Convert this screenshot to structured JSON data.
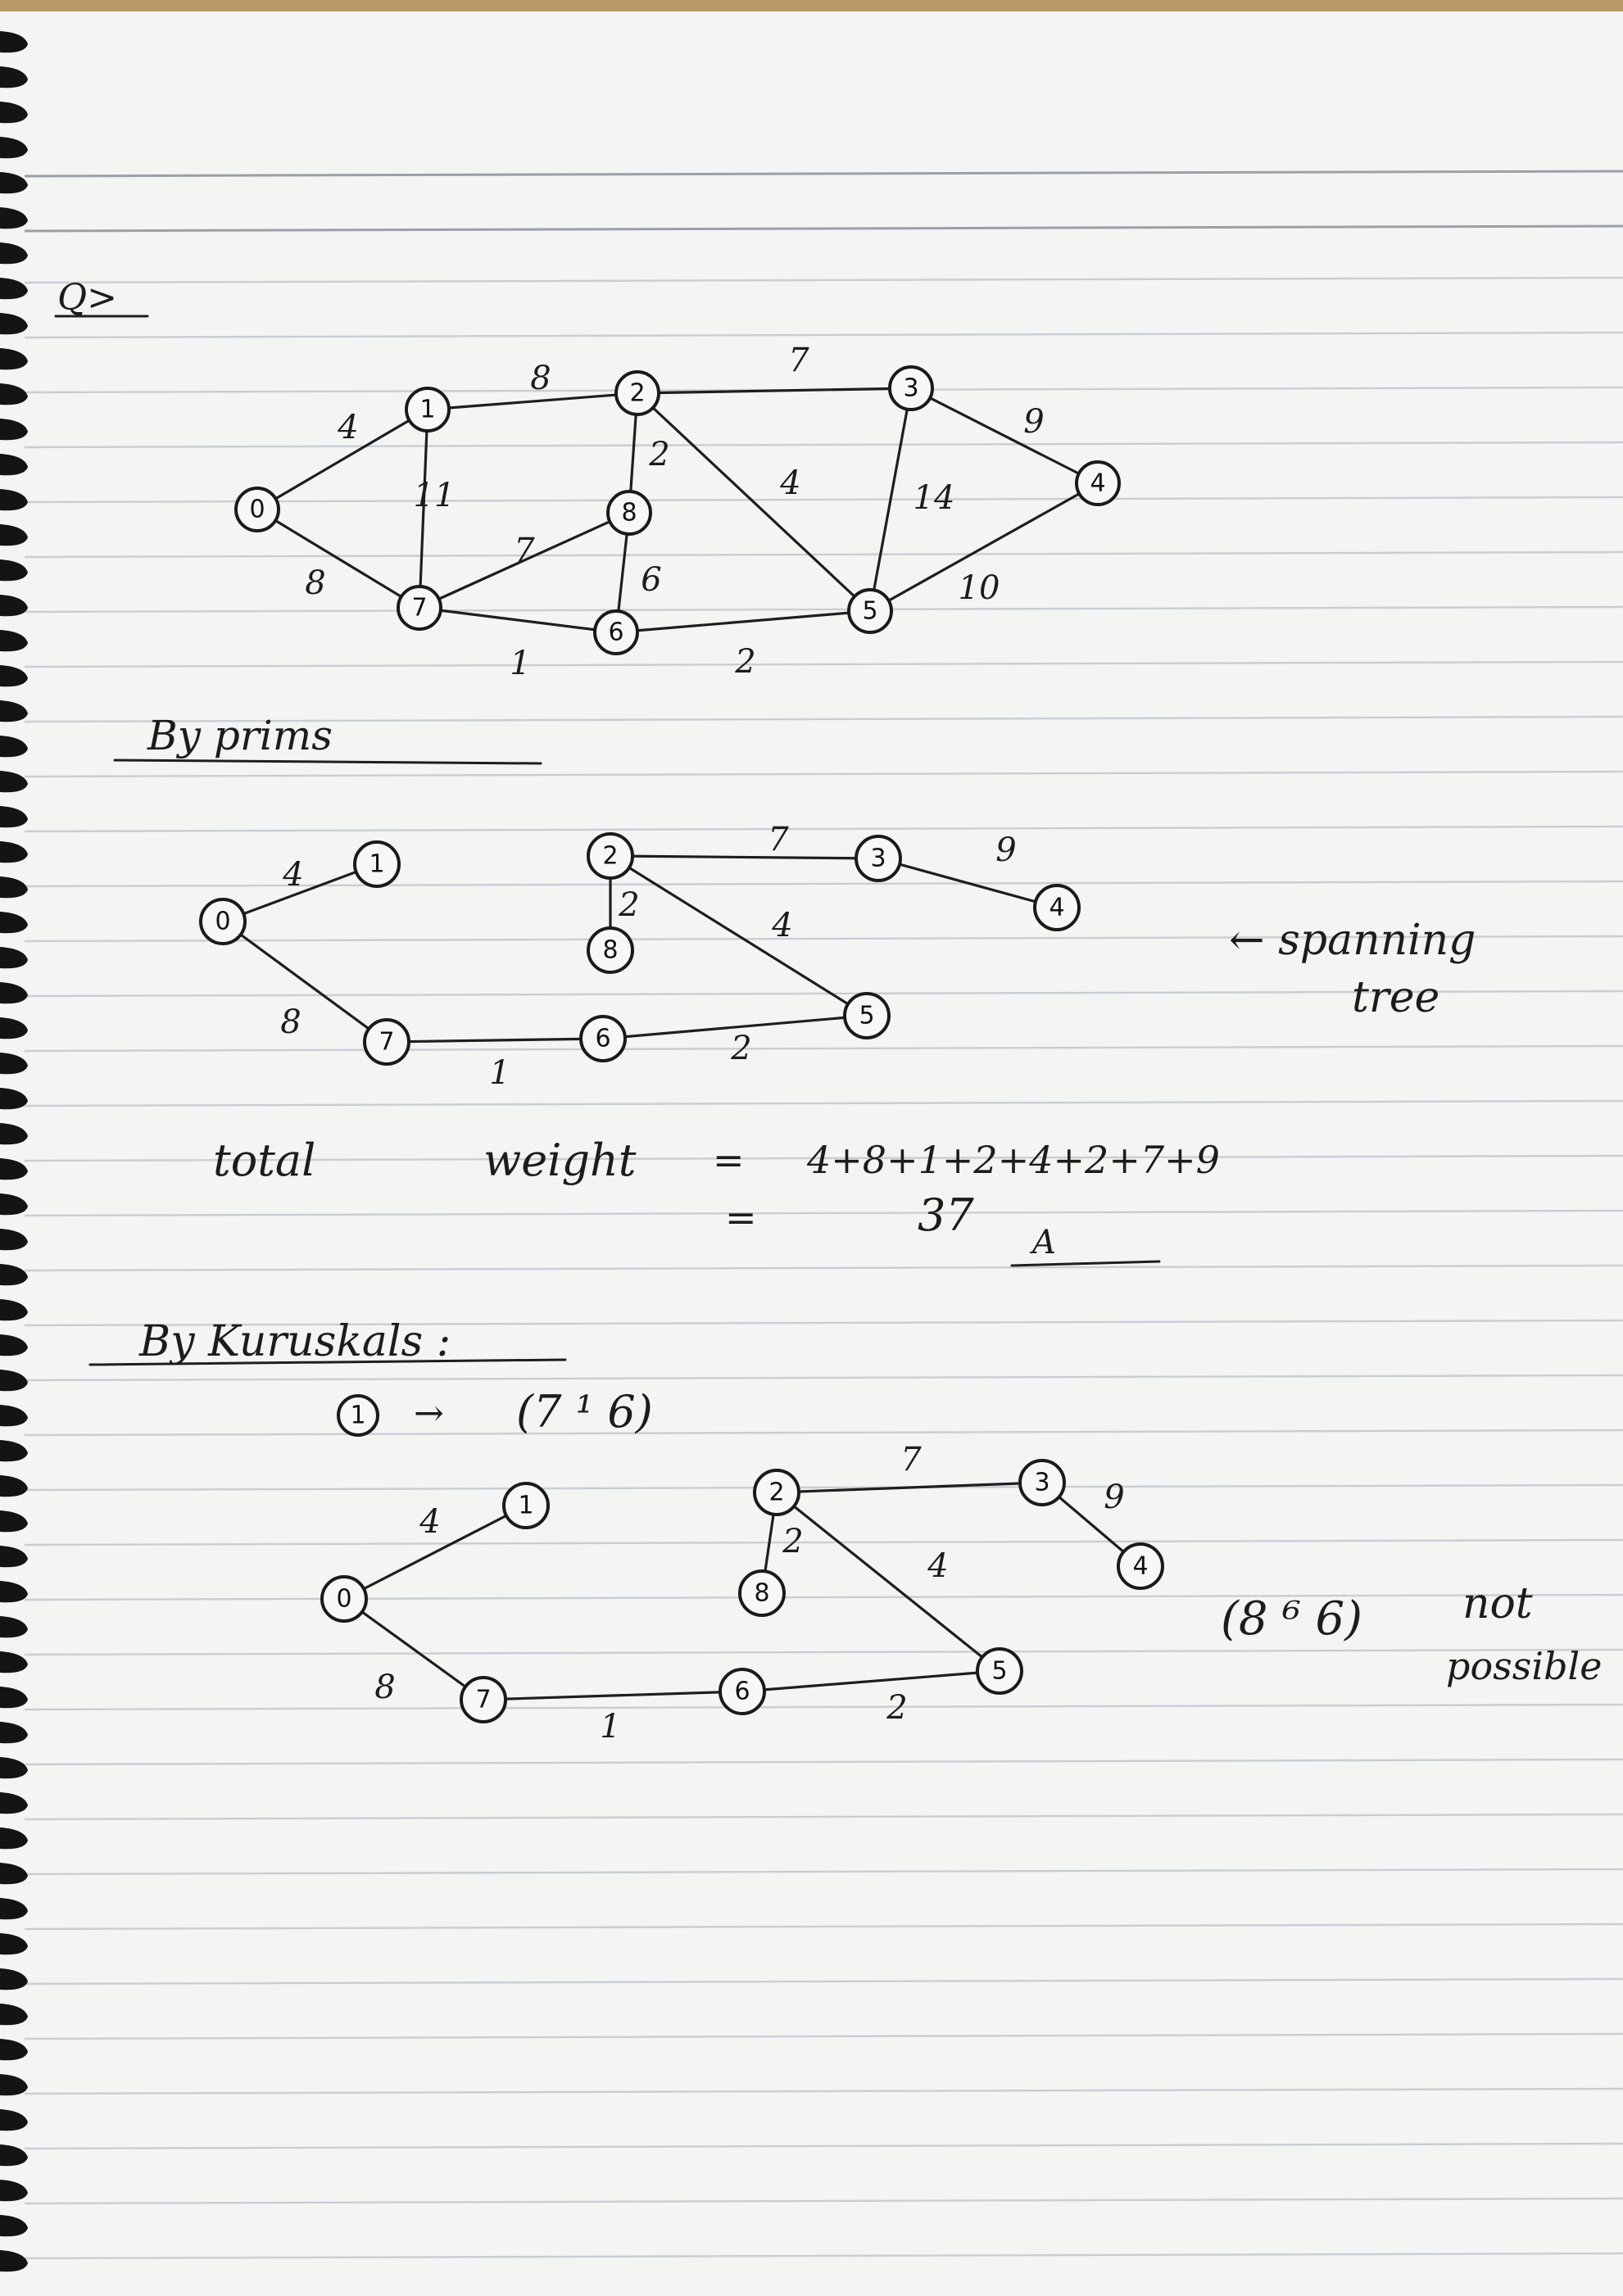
{
  "question_label": "Q>",
  "original_graph": {
    "nodes": [
      {
        "id": "0",
        "label": "0"
      },
      {
        "id": "1",
        "label": "1"
      },
      {
        "id": "2",
        "label": "2"
      },
      {
        "id": "3",
        "label": "3"
      },
      {
        "id": "4",
        "label": "4"
      },
      {
        "id": "5",
        "label": "5"
      },
      {
        "id": "6",
        "label": "6"
      },
      {
        "id": "7",
        "label": "7"
      },
      {
        "id": "8",
        "label": "8"
      }
    ],
    "edges": [
      {
        "from": "0",
        "to": "1",
        "weight": "4"
      },
      {
        "from": "1",
        "to": "2",
        "weight": "8"
      },
      {
        "from": "2",
        "to": "3",
        "weight": "7"
      },
      {
        "from": "3",
        "to": "4",
        "weight": "9"
      },
      {
        "from": "1",
        "to": "7",
        "weight": "11"
      },
      {
        "from": "2",
        "to": "8",
        "weight": "2"
      },
      {
        "from": "2",
        "to": "5",
        "weight": "4"
      },
      {
        "from": "3",
        "to": "5",
        "weight": "14"
      },
      {
        "from": "0",
        "to": "7",
        "weight": "8"
      },
      {
        "from": "7",
        "to": "8",
        "weight": "7"
      },
      {
        "from": "8",
        "to": "6",
        "weight": "6"
      },
      {
        "from": "4",
        "to": "5",
        "weight": "10"
      },
      {
        "from": "7",
        "to": "6",
        "weight": "1"
      },
      {
        "from": "6",
        "to": "5",
        "weight": "2"
      }
    ]
  },
  "prims": {
    "heading": "By prims",
    "edges": [
      {
        "from": "0",
        "to": "1",
        "weight": "4"
      },
      {
        "from": "0",
        "to": "7",
        "weight": "8"
      },
      {
        "from": "7",
        "to": "6",
        "weight": "1"
      },
      {
        "from": "6",
        "to": "5",
        "weight": "2"
      },
      {
        "from": "2",
        "to": "5",
        "weight": "4"
      },
      {
        "from": "2",
        "to": "8",
        "weight": "2"
      },
      {
        "from": "2",
        "to": "3",
        "weight": "7"
      },
      {
        "from": "3",
        "to": "4",
        "weight": "9"
      }
    ],
    "annotation_line1": "← spanning",
    "annotation_line2": "tree",
    "total_label": "total",
    "weight_label": "weight",
    "eq_sign": "=",
    "sum_expr": "4+8+1+2+4+2+7+9",
    "total_value": "37",
    "answer_mark": "A"
  },
  "kruskals": {
    "heading": "By Kuruskals :",
    "step_number": "1",
    "step_arrow": "→",
    "step_edge": "(7 ¹ 6)",
    "edges": [
      {
        "from": "0",
        "to": "1",
        "weight": "4"
      },
      {
        "from": "0",
        "to": "7",
        "weight": "8"
      },
      {
        "from": "7",
        "to": "6",
        "weight": "1"
      },
      {
        "from": "6",
        "to": "5",
        "weight": "2"
      },
      {
        "from": "2",
        "to": "5",
        "weight": "4"
      },
      {
        "from": "2",
        "to": "8",
        "weight": "2"
      },
      {
        "from": "2",
        "to": "3",
        "weight": "7"
      },
      {
        "from": "3",
        "to": "4",
        "weight": "9"
      }
    ],
    "note_edge": "(8 ⁶ 6)",
    "note_line1": "not",
    "note_line2": "possible"
  }
}
